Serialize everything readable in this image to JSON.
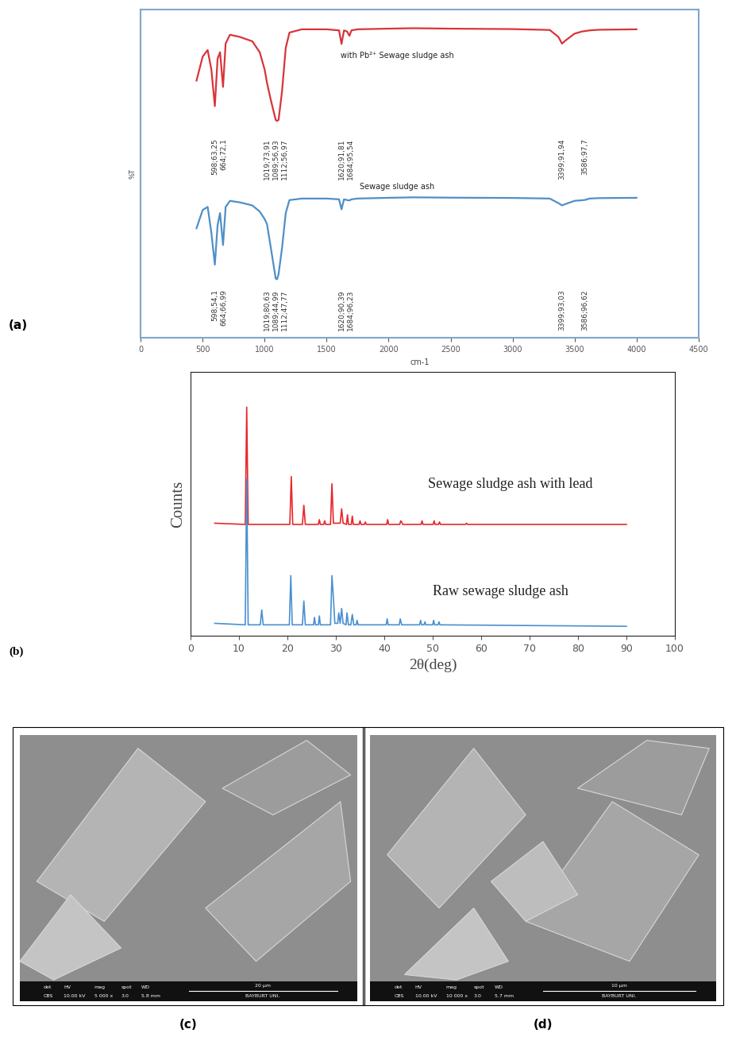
{
  "chart_data": [
    {
      "type": "line",
      "panel_label": "(a)",
      "x_label": "cm-1",
      "y_label": "%T",
      "xlim": [
        0,
        4500
      ],
      "xticks": [
        0,
        500,
        1000,
        1500,
        2000,
        2500,
        3000,
        3500,
        4000,
        4500
      ],
      "tick_labels": "x",
      "series": [
        {
          "name": "with Pb²⁺ Sewage sludge ash",
          "color": "#d9343a",
          "ylim": [
            50,
            101
          ],
          "x": [
            450,
            500,
            540,
            570,
            598,
            620,
            640,
            664,
            685,
            720,
            800,
            900,
            960,
            1000,
            1019,
            1050,
            1089,
            1100,
            1112,
            1140,
            1170,
            1200,
            1300,
            1500,
            1600,
            1620,
            1640,
            1665,
            1684,
            1700,
            1750,
            2000,
            2200,
            2500,
            3000,
            3300,
            3370,
            3399,
            3430,
            3500,
            3560,
            3586,
            3620,
            3700,
            4000
          ],
          "values": [
            75,
            86,
            89,
            80,
            63.25,
            85,
            88,
            72.1,
            92,
            96,
            95,
            93,
            88,
            80,
            73.91,
            66,
            56.93,
            56.5,
            56.97,
            70,
            90,
            97,
            98.5,
            98.5,
            98,
            91.81,
            98,
            97.5,
            95.54,
            98,
            98.5,
            98.8,
            99,
            98.8,
            98.6,
            98.2,
            95,
            91.94,
            93.5,
            96.5,
            97.5,
            97.7,
            98,
            98.3,
            98.5
          ],
          "annotations": [
            {
              "x": 598,
              "label": "598;63,25"
            },
            {
              "x": 664,
              "label": "664;72,1"
            },
            {
              "x": 1019,
              "label": "1019;73,91"
            },
            {
              "x": 1089,
              "label": "1089;56,93"
            },
            {
              "x": 1112,
              "label": "1112;56,97"
            },
            {
              "x": 1620,
              "label": "1620;91,81"
            },
            {
              "x": 1684,
              "label": "1684;95,54"
            },
            {
              "x": 3399,
              "label": "3399;91,94"
            },
            {
              "x": 3586,
              "label": "3586;97,7"
            }
          ]
        },
        {
          "name": "Sewage sludge ash",
          "color": "#4f8fc7",
          "ylim": [
            40,
            100
          ],
          "x": [
            450,
            500,
            540,
            570,
            598,
            620,
            640,
            664,
            685,
            720,
            800,
            900,
            960,
            1000,
            1019,
            1050,
            1089,
            1100,
            1112,
            1140,
            1170,
            1200,
            1300,
            1500,
            1600,
            1620,
            1640,
            1665,
            1684,
            1700,
            1750,
            2000,
            2200,
            2500,
            3000,
            3300,
            3370,
            3399,
            3430,
            3500,
            3560,
            3586,
            3620,
            3700,
            4000
          ],
          "values": [
            78,
            90,
            92,
            75,
            54.1,
            80,
            88,
            66.99,
            92,
            96,
            95,
            93,
            89,
            84,
            80.63,
            65,
            44.99,
            44.5,
            47.77,
            65,
            88,
            96.5,
            97.5,
            97.5,
            97,
            90.39,
            97,
            96.5,
            96.23,
            97,
            97.5,
            98,
            98.3,
            98.1,
            97.9,
            97.5,
            94.5,
            93.03,
            94,
            96,
            96.4,
            96.62,
            97.5,
            97.8,
            98
          ],
          "annotations": [
            {
              "x": 598,
              "label": "598;54,1"
            },
            {
              "x": 664,
              "label": "664;66,99"
            },
            {
              "x": 1019,
              "label": "1019;80,63"
            },
            {
              "x": 1089,
              "label": "1089;44,99"
            },
            {
              "x": 1112,
              "label": "1112;47,77"
            },
            {
              "x": 1620,
              "label": "1620;90,39"
            },
            {
              "x": 1684,
              "label": "1684;96,23"
            },
            {
              "x": 3399,
              "label": "3399;93,03"
            },
            {
              "x": 3586,
              "label": "3586;96,62"
            }
          ]
        }
      ]
    },
    {
      "type": "line",
      "panel_label": "(b)",
      "x_label": "2θ(deg)",
      "y_label": "Counts",
      "xlim": [
        0,
        100
      ],
      "xticks": [
        0,
        10,
        20,
        30,
        40,
        50,
        60,
        70,
        80,
        90,
        100
      ],
      "tick_labels": "x",
      "series": [
        {
          "name": "Sewage sludge ash with lead",
          "color": "#e8262b",
          "ylim": [
            0,
            105
          ],
          "x": [
            5,
            11.3,
            11.6,
            11.9,
            20.5,
            20.8,
            21.1,
            23.1,
            23.4,
            23.7,
            26.4,
            26.6,
            26.8,
            27.5,
            27.7,
            27.9,
            28.9,
            29.2,
            29.5,
            30.9,
            31.2,
            31.5,
            32.2,
            32.4,
            32.6,
            33.2,
            33.4,
            33.6,
            34.8,
            35.0,
            35.2,
            35.9,
            36.1,
            36.3,
            40.5,
            40.7,
            40.9,
            43.2,
            43.4,
            43.6,
            43.8,
            47.6,
            47.8,
            48.0,
            50.1,
            50.3,
            50.5,
            51.2,
            51.4,
            51.6,
            56.8,
            57.0,
            57.2,
            90
          ],
          "values": [
            3,
            2,
            100,
            2,
            2,
            42,
            2,
            2,
            18,
            2,
            2,
            6,
            2,
            2,
            5,
            2,
            2,
            36,
            3,
            3,
            15,
            3,
            2,
            10,
            2,
            2,
            9,
            2,
            2,
            5,
            2,
            2,
            4,
            2,
            2,
            6,
            2,
            2,
            5,
            4,
            2,
            2,
            5,
            2,
            2,
            5,
            2,
            2,
            4,
            2,
            2,
            3,
            2,
            2
          ]
        },
        {
          "name": "Raw sewage sludge ash",
          "color": "#4a90d0",
          "ylim": [
            0,
            105
          ],
          "x": [
            5,
            11.3,
            11.6,
            11.9,
            14.4,
            14.7,
            15.0,
            20.4,
            20.7,
            21.0,
            23.1,
            23.4,
            23.7,
            25.4,
            25.6,
            25.8,
            26.4,
            26.6,
            26.8,
            28.9,
            29.2,
            29.5,
            29.8,
            30.4,
            30.6,
            30.9,
            31.2,
            31.5,
            32.1,
            32.3,
            32.6,
            33.1,
            33.4,
            33.7,
            34.2,
            34.4,
            34.6,
            40.4,
            40.6,
            40.8,
            43.1,
            43.3,
            43.6,
            47.3,
            47.5,
            47.7,
            48.2,
            48.4,
            48.6,
            50.0,
            50.2,
            50.4,
            51.1,
            51.3,
            51.5,
            90
          ],
          "values": [
            3,
            2,
            100,
            2,
            2,
            12,
            2,
            2,
            35,
            2,
            2,
            18,
            2,
            2,
            7,
            2,
            2,
            8,
            2,
            2,
            35,
            20,
            3,
            3,
            10,
            3,
            13,
            3,
            2,
            10,
            2,
            2,
            9,
            2,
            2,
            5,
            2,
            2,
            6,
            2,
            2,
            6,
            2,
            2,
            5,
            2,
            2,
            4,
            2,
            2,
            5,
            2,
            2,
            4,
            2,
            1
          ]
        }
      ]
    }
  ],
  "images": [
    {
      "panel_label": "(c)",
      "info_bar": {
        "headers": [
          "det",
          "HV",
          "mag",
          "spot",
          "WD"
        ],
        "values": [
          "CBS",
          "10.00 kV",
          "5 000 x",
          "3.0",
          "5.8 mm"
        ],
        "scale_bar": "20 µm",
        "institution": "BAYBURT UNI."
      }
    },
    {
      "panel_label": "(d)",
      "info_bar": {
        "headers": [
          "det",
          "HV",
          "mag",
          "spot",
          "WD"
        ],
        "values": [
          "CBS",
          "10.00 kV",
          "10 000 x",
          "3.0",
          "5.7 mm"
        ],
        "scale_bar": "10 µm",
        "institution": "BAYBURT UNI."
      }
    }
  ]
}
